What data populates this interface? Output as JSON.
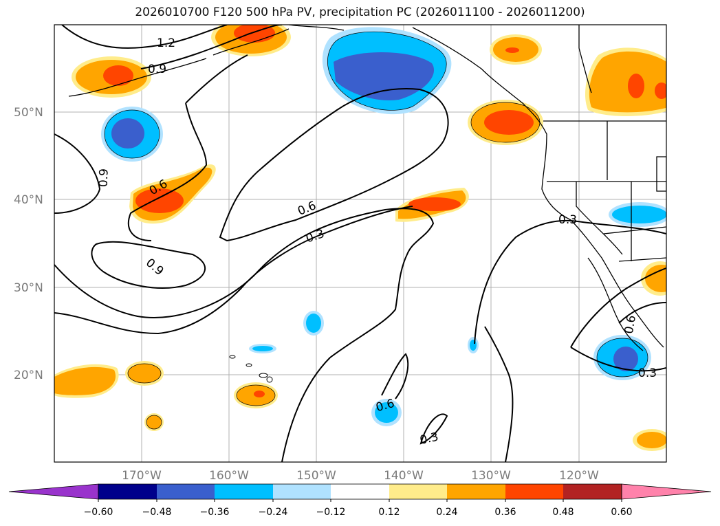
{
  "title": "2026010700 F120 500 hPa PV, precipitation PC (2026011100 - 2026011200)",
  "axes": {
    "lat_labels": [
      "50°N",
      "40°N",
      "30°N",
      "20°N"
    ],
    "lon_labels": [
      "170°W",
      "160°W",
      "150°W",
      "140°W",
      "130°W",
      "120°W"
    ]
  },
  "contour_labels": [
    "1.2",
    "0.9",
    "0.9",
    "0.6",
    "0.9",
    "0.6",
    "0.3",
    "0.6",
    "0.3",
    "0.3",
    "0.6",
    "0.3"
  ],
  "colorbar": {
    "ticks": [
      "−0.60",
      "−0.48",
      "−0.36",
      "−0.24",
      "−0.12",
      "0.12",
      "0.24",
      "0.36",
      "0.48",
      "0.60"
    ],
    "colors": {
      "under": "#9933cc",
      "b1": "#00008b",
      "b2": "#3a5fcd",
      "b3": "#00bfff",
      "b4": "#b0e2ff",
      "b5": "#ffffff",
      "b6": "#ffec8b",
      "b7": "#ffa500",
      "b8": "#ff4500",
      "b9": "#b22222",
      "over": "#ff82ab"
    }
  }
}
